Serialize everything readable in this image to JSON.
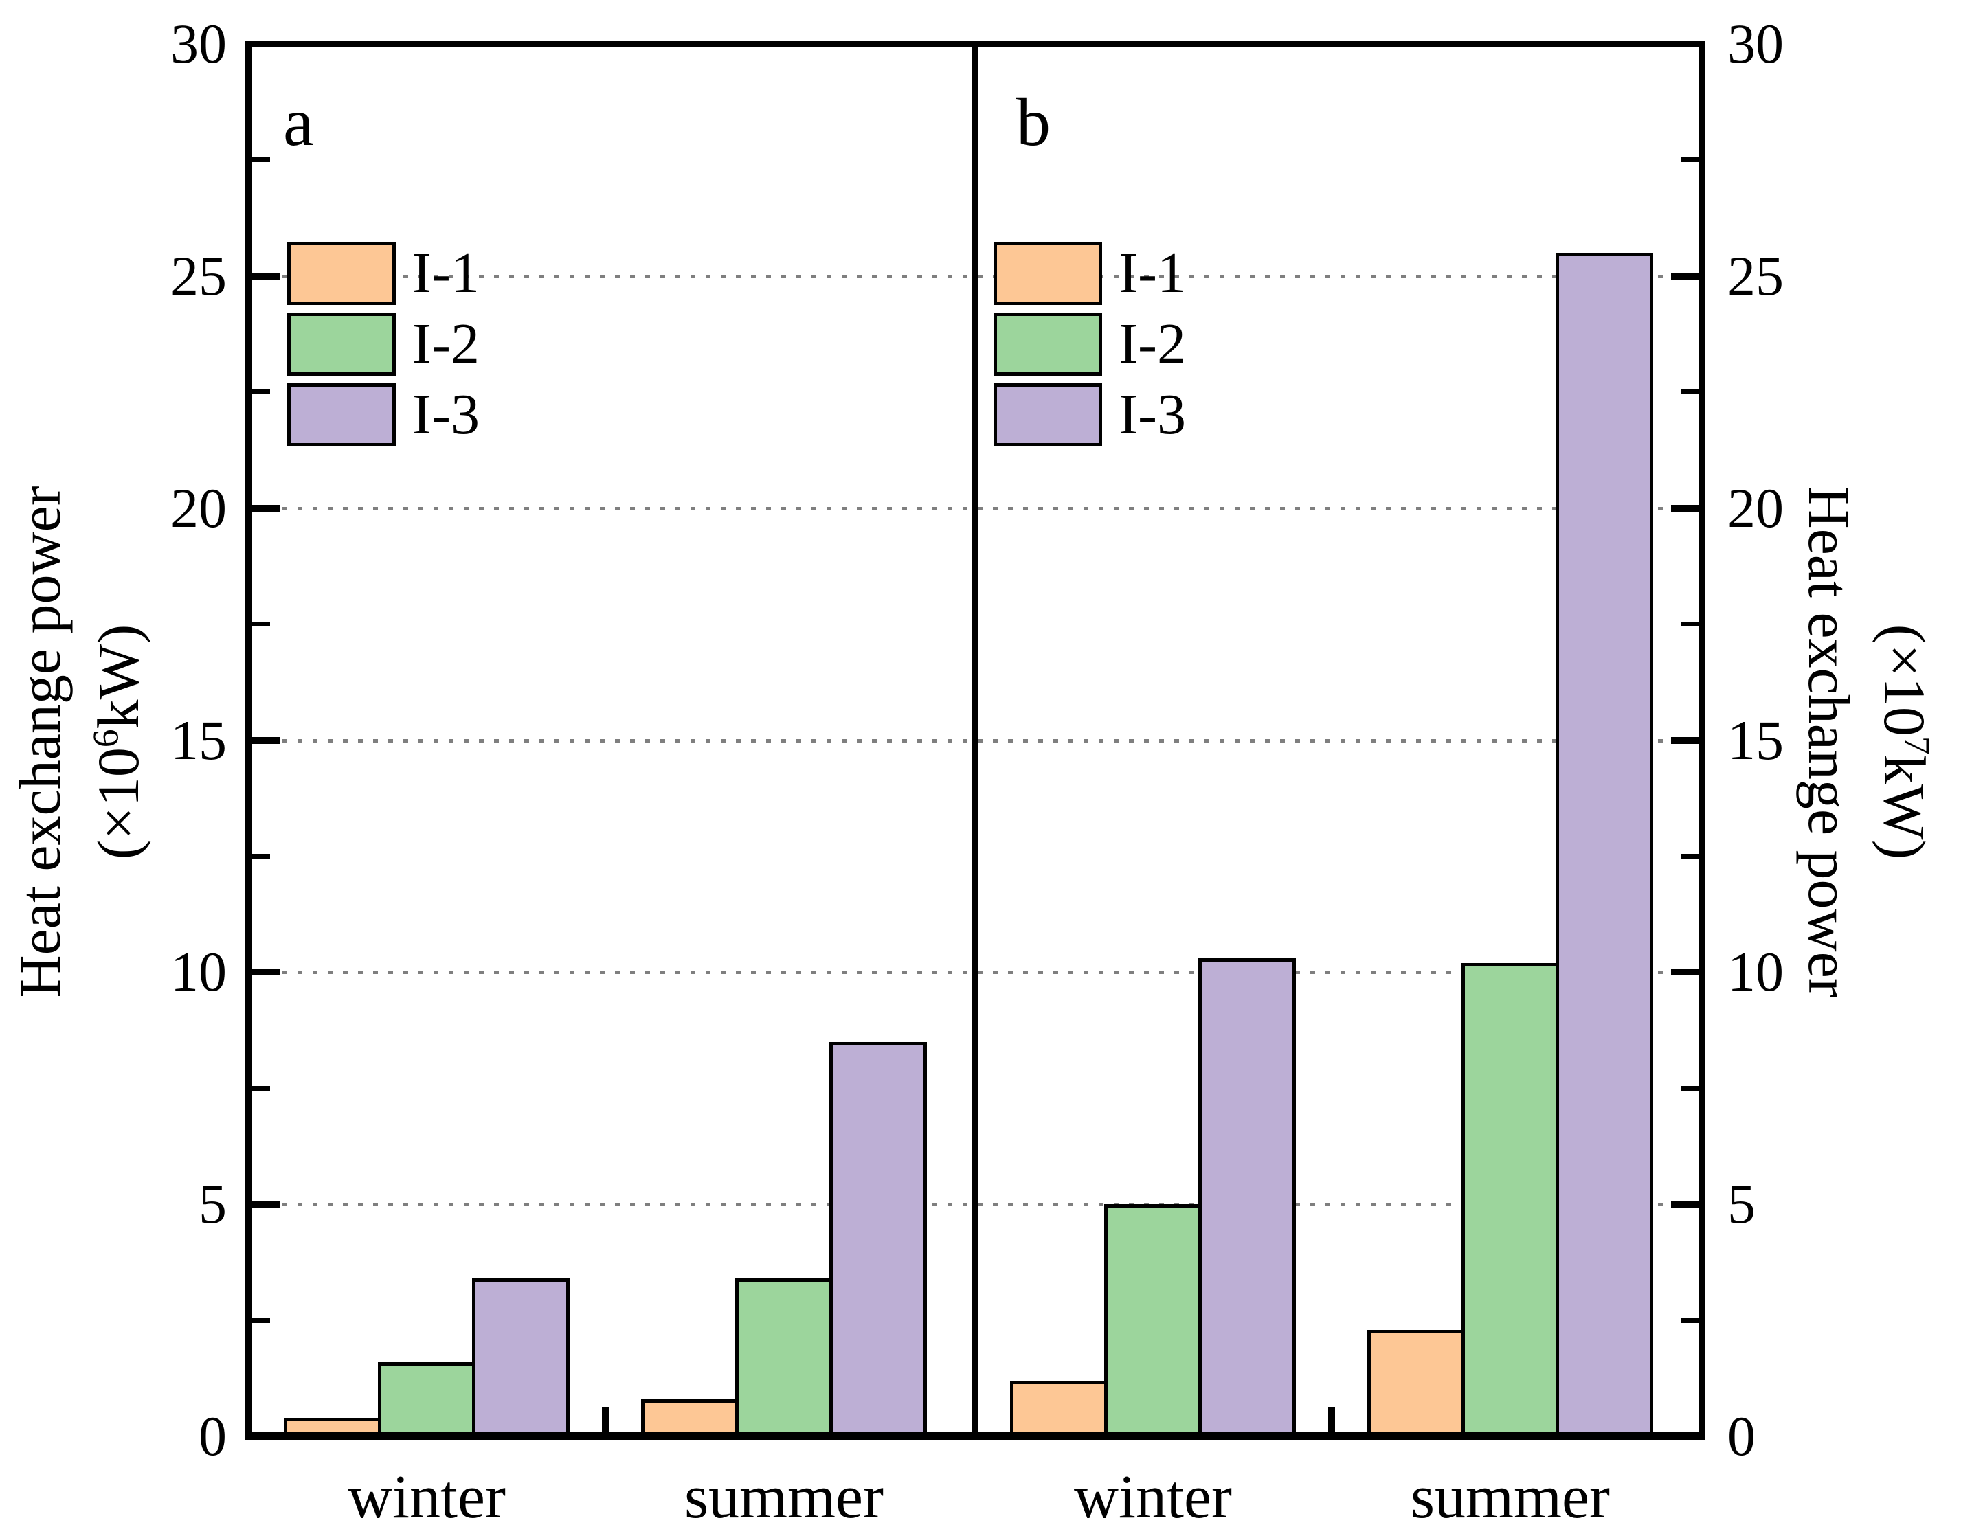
{
  "colors": {
    "axis": "#000000",
    "gridline": "#7F7F7F",
    "background": "#FFFFFF",
    "bar_orange": "#FDC795",
    "bar_green": "#9CD59C",
    "bar_purple": "#BDAFD5"
  },
  "chart_data": [
    {
      "type": "bar",
      "panel_label": "a",
      "categories": [
        "winter",
        "summer"
      ],
      "series": [
        {
          "name": "I-1",
          "color": "#FDC795",
          "values": [
            0.4,
            0.8
          ]
        },
        {
          "name": "I-2",
          "color": "#9CD59C",
          "values": [
            1.6,
            3.4
          ]
        },
        {
          "name": "I-3",
          "color": "#BDAFD5",
          "values": [
            3.4,
            8.5
          ]
        }
      ],
      "ylabel": "Heat exchange power (×10⁶kW)",
      "ylabel_line1": "Heat exchange power",
      "ylabel_prefix": "(×10",
      "ylabel_exponent": "6",
      "ylabel_suffix": "kW)",
      "axis_side": "left",
      "ylim": [
        0,
        30
      ],
      "yticks": [
        0,
        5,
        10,
        15,
        20,
        25,
        30
      ],
      "yminorticks": [
        2.5,
        7.5,
        12.5,
        17.5,
        22.5,
        27.5
      ],
      "gridlines": [
        5,
        10,
        15,
        20,
        25
      ],
      "grid_style": "dotted",
      "legend_position": "upper-left",
      "legend": [
        "I-1",
        "I-2",
        "I-3"
      ]
    },
    {
      "type": "bar",
      "panel_label": "b",
      "categories": [
        "winter",
        "summer"
      ],
      "series": [
        {
          "name": "I-1",
          "color": "#FDC795",
          "values": [
            1.2,
            2.3
          ]
        },
        {
          "name": "I-2",
          "color": "#9CD59C",
          "values": [
            5.0,
            10.2
          ]
        },
        {
          "name": "I-3",
          "color": "#BDAFD5",
          "values": [
            10.3,
            25.5
          ]
        }
      ],
      "ylabel": "Heat exchange power (×10⁷kW)",
      "ylabel_line1": "Heat exchange power",
      "ylabel_prefix": "(×10",
      "ylabel_exponent": "7",
      "ylabel_suffix": "kW)",
      "axis_side": "right",
      "ylim": [
        0,
        30
      ],
      "yticks": [
        0,
        5,
        10,
        15,
        20,
        25,
        30
      ],
      "yminorticks": [
        2.5,
        7.5,
        12.5,
        17.5,
        22.5,
        27.5
      ],
      "gridlines": [
        5,
        10,
        15,
        20,
        25
      ],
      "grid_style": "dotted",
      "legend_position": "upper-left",
      "legend": [
        "I-1",
        "I-2",
        "I-3"
      ]
    }
  ]
}
